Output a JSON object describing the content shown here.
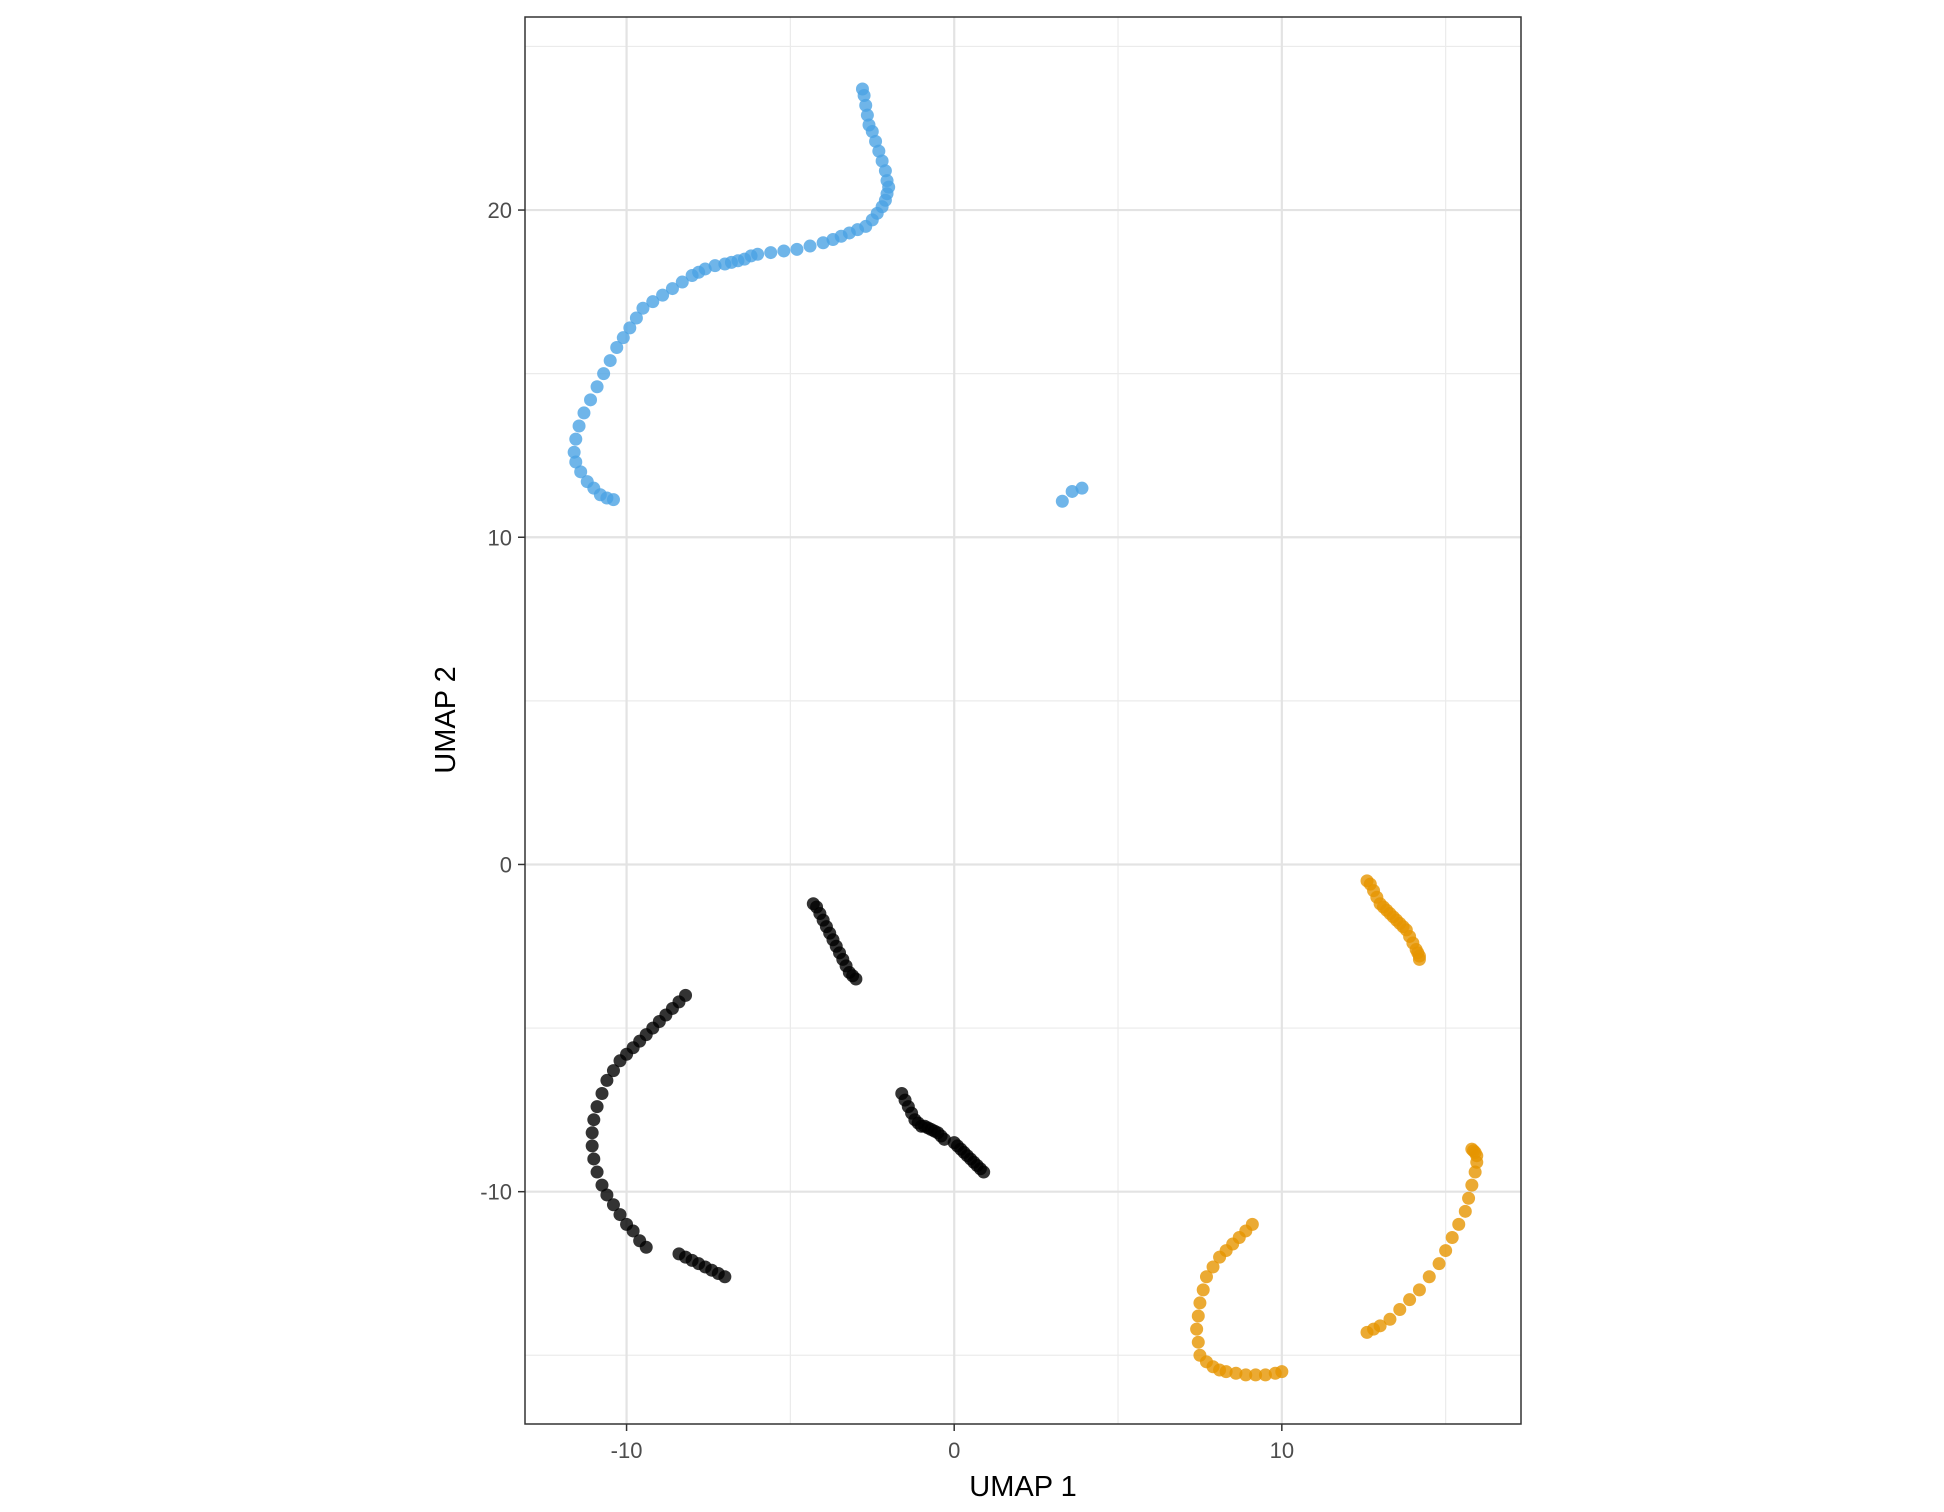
{
  "chart_data": {
    "type": "scatter",
    "title": "",
    "xlabel": "UMAP 1",
    "ylabel": "UMAP 2",
    "xlim": [
      -13.1,
      17.3
    ],
    "ylim": [
      -17.1,
      25.9
    ],
    "x_ticks": [
      -10,
      0,
      10
    ],
    "y_ticks": [
      -10,
      0,
      10,
      20
    ],
    "x_tick_labels": [
      "-10",
      "0",
      "10"
    ],
    "y_tick_labels": [
      "-10",
      "0",
      "10",
      "20"
    ],
    "grid": true,
    "legend": "none",
    "series": [
      {
        "color": "#4ba3e3",
        "x": [
          -2.8,
          -2.75,
          -2.7,
          -2.65,
          -2.6,
          -2.5,
          -2.4,
          -2.3,
          -2.2,
          -2.1,
          -2.05,
          -2.0,
          -2.05,
          -2.1,
          -2.2,
          -2.35,
          -2.5,
          -2.7,
          -2.95,
          -3.2,
          -3.45,
          -3.7,
          -4.0,
          -4.4,
          -4.8,
          -5.2,
          -5.6,
          -6.0,
          -6.2,
          -6.4,
          -6.6,
          -6.8,
          -7.0,
          -7.3,
          -7.6,
          -7.8,
          -8.0,
          -8.3,
          -8.6,
          -8.9,
          -9.2,
          -9.5,
          -9.7,
          -9.9,
          -10.1,
          -10.3,
          -10.5,
          -10.7,
          -10.9,
          -11.1,
          -11.3,
          -11.45,
          -11.55,
          -11.6,
          -11.55,
          -11.4,
          -11.2,
          -11.0,
          -10.8,
          -10.6,
          -10.4,
          3.3,
          3.6,
          3.9
        ],
        "y": [
          23.7,
          23.5,
          23.2,
          22.9,
          22.6,
          22.4,
          22.1,
          21.8,
          21.5,
          21.2,
          20.9,
          20.7,
          20.5,
          20.3,
          20.1,
          19.9,
          19.7,
          19.5,
          19.4,
          19.3,
          19.2,
          19.1,
          19.0,
          18.9,
          18.8,
          18.75,
          18.7,
          18.65,
          18.6,
          18.5,
          18.45,
          18.4,
          18.35,
          18.3,
          18.2,
          18.1,
          18.0,
          17.8,
          17.6,
          17.4,
          17.2,
          17.0,
          16.7,
          16.4,
          16.1,
          15.8,
          15.4,
          15.0,
          14.6,
          14.2,
          13.8,
          13.4,
          13.0,
          12.6,
          12.3,
          12.0,
          11.7,
          11.5,
          11.3,
          11.2,
          11.15,
          11.1,
          11.4,
          11.5
        ]
      },
      {
        "color": "#000000",
        "x": [
          -4.3,
          -4.2,
          -4.1,
          -4.0,
          -3.9,
          -3.8,
          -3.7,
          -3.6,
          -3.5,
          -3.4,
          -3.3,
          -3.2,
          -3.1,
          -3.0,
          -8.2,
          -8.4,
          -8.6,
          -8.8,
          -9.0,
          -9.2,
          -9.4,
          -9.6,
          -9.8,
          -10.0,
          -10.2,
          -10.4,
          -10.6,
          -10.75,
          -10.9,
          -11.0,
          -11.05,
          -11.05,
          -11.0,
          -10.9,
          -10.75,
          -10.6,
          -10.4,
          -10.2,
          -10.0,
          -9.8,
          -9.6,
          -9.4,
          -8.4,
          -8.2,
          -8.0,
          -7.8,
          -7.6,
          -7.4,
          -7.2,
          -7.0,
          -1.6,
          -1.5,
          -1.4,
          -1.3,
          -1.2,
          -1.1,
          -1.0,
          -0.9,
          -0.8,
          -0.7,
          -0.6,
          -0.5,
          -0.4,
          -0.3,
          0.0,
          0.1,
          0.2,
          0.3,
          0.4,
          0.5,
          0.6,
          0.7,
          0.8,
          0.9
        ],
        "y": [
          -1.2,
          -1.3,
          -1.5,
          -1.7,
          -1.9,
          -2.1,
          -2.3,
          -2.5,
          -2.7,
          -2.9,
          -3.1,
          -3.3,
          -3.4,
          -3.5,
          -4.0,
          -4.2,
          -4.4,
          -4.6,
          -4.8,
          -5.0,
          -5.2,
          -5.4,
          -5.6,
          -5.8,
          -6.0,
          -6.3,
          -6.6,
          -7.0,
          -7.4,
          -7.8,
          -8.2,
          -8.6,
          -9.0,
          -9.4,
          -9.8,
          -10.1,
          -10.4,
          -10.7,
          -11.0,
          -11.2,
          -11.5,
          -11.7,
          -11.9,
          -12.0,
          -12.1,
          -12.2,
          -12.3,
          -12.4,
          -12.5,
          -12.6,
          -7.0,
          -7.2,
          -7.4,
          -7.6,
          -7.8,
          -7.9,
          -8.0,
          -8.0,
          -8.05,
          -8.1,
          -8.15,
          -8.2,
          -8.3,
          -8.4,
          -8.5,
          -8.6,
          -8.7,
          -8.8,
          -8.9,
          -9.0,
          -9.1,
          -9.2,
          -9.3,
          -9.4
        ]
      },
      {
        "color": "#e69500",
        "x": [
          12.6,
          12.7,
          12.8,
          12.9,
          13.0,
          13.1,
          13.2,
          13.3,
          13.4,
          13.5,
          13.6,
          13.7,
          13.8,
          13.9,
          14.0,
          14.1,
          14.15,
          14.2,
          14.2,
          9.1,
          8.9,
          8.7,
          8.5,
          8.3,
          8.1,
          7.9,
          7.7,
          7.6,
          7.5,
          7.45,
          7.4,
          7.45,
          7.5,
          7.7,
          7.9,
          8.1,
          8.3,
          8.6,
          8.9,
          9.2,
          9.5,
          9.8,
          10.0,
          12.6,
          12.8,
          13.0,
          13.3,
          13.6,
          13.9,
          14.2,
          14.5,
          14.8,
          15.0,
          15.2,
          15.4,
          15.6,
          15.7,
          15.8,
          15.9,
          15.95,
          15.95,
          15.9,
          15.85,
          15.8
        ],
        "y": [
          -0.5,
          -0.6,
          -0.8,
          -1.0,
          -1.2,
          -1.3,
          -1.4,
          -1.5,
          -1.6,
          -1.7,
          -1.8,
          -1.9,
          -2.0,
          -2.2,
          -2.4,
          -2.6,
          -2.7,
          -2.8,
          -2.9,
          -11.0,
          -11.2,
          -11.4,
          -11.6,
          -11.8,
          -12.0,
          -12.3,
          -12.6,
          -13.0,
          -13.4,
          -13.8,
          -14.2,
          -14.6,
          -15.0,
          -15.2,
          -15.35,
          -15.45,
          -15.5,
          -15.55,
          -15.6,
          -15.6,
          -15.6,
          -15.55,
          -15.5,
          -14.3,
          -14.2,
          -14.1,
          -13.9,
          -13.6,
          -13.3,
          -13.0,
          -12.6,
          -12.2,
          -11.8,
          -11.4,
          -11.0,
          -10.6,
          -10.2,
          -9.8,
          -9.4,
          -9.1,
          -8.9,
          -8.8,
          -8.75,
          -8.7
        ]
      }
    ]
  }
}
